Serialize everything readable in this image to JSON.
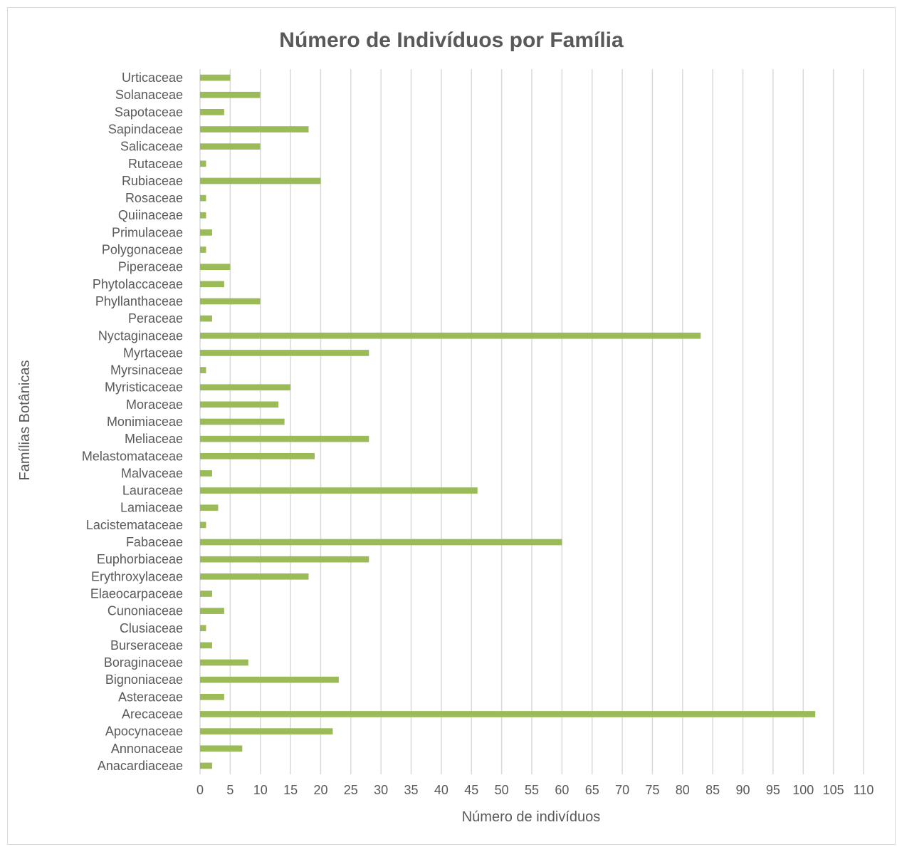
{
  "chart_data": {
    "type": "bar",
    "orientation": "horizontal",
    "title": "Número de Indivíduos por Família",
    "xlabel": "Número de indivíduos",
    "ylabel": "Famílias Botânicas",
    "xlim": [
      0,
      110
    ],
    "x_ticks": [
      "0",
      "5",
      "10",
      "15",
      "20",
      "25",
      "30",
      "35",
      "40",
      "45",
      "50",
      "55",
      "60",
      "65",
      "70",
      "75",
      "80",
      "85",
      "90",
      "95",
      "100",
      "105",
      "110"
    ],
    "grid": true,
    "bar_color": "#9bbb59",
    "categories": [
      "Anacardiaceae",
      "Annonaceae",
      "Apocynaceae",
      "Arecaceae",
      "Asteraceae",
      "Bignoniaceae",
      "Boraginaceae",
      "Burseraceae",
      "Clusiaceae",
      "Cunoniaceae",
      "Elaeocarpaceae",
      "Erythroxylaceae",
      "Euphorbiaceae",
      "Fabaceae",
      "Lacistemataceae",
      "Lamiaceae",
      "Lauraceae",
      "Malvaceae",
      "Melastomataceae",
      "Meliaceae",
      "Monimiaceae",
      "Moraceae",
      "Myristicaceae",
      "Myrsinaceae",
      "Myrtaceae",
      "Nyctaginaceae",
      "Peraceae",
      "Phyllanthaceae",
      "Phytolaccaceae",
      "Piperaceae",
      "Polygonaceae",
      "Primulaceae",
      "Quiinaceae",
      "Rosaceae",
      "Rubiaceae",
      "Rutaceae",
      "Salicaceae",
      "Sapindaceae",
      "Sapotaceae",
      "Solanaceae",
      "Urticaceae"
    ],
    "values": [
      2,
      7,
      22,
      102,
      4,
      23,
      8,
      2,
      1,
      4,
      2,
      18,
      28,
      60,
      1,
      3,
      46,
      2,
      19,
      28,
      14,
      13,
      15,
      1,
      28,
      83,
      2,
      10,
      4,
      5,
      1,
      2,
      1,
      1,
      20,
      1,
      10,
      18,
      4,
      10,
      5
    ]
  }
}
